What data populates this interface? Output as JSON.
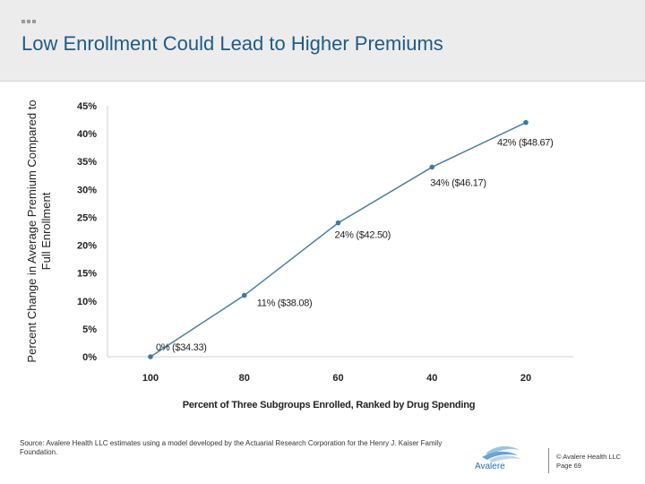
{
  "slide": {
    "title": "Low Enrollment Could Lead to Higher Premiums",
    "source": "Source:  Avalere Health LLC estimates using a model developed by the Actuarial Research Corporation for the Henry J. Kaiser Family Foundation.",
    "logo_text": "Avalere",
    "copyright": "© Avalere Health LLC",
    "page": "Page 69"
  },
  "chart_data": {
    "type": "line",
    "title": "",
    "xlabel": "Percent of Three Subgroups Enrolled, Ranked by Drug Spending",
    "ylabel": "Percent Change in Average Premium Compared to Full Enrollment",
    "x": [
      100,
      80,
      60,
      40,
      20
    ],
    "categories": [
      "100",
      "80",
      "60",
      "40",
      "20"
    ],
    "values": [
      0,
      11,
      24,
      34,
      42
    ],
    "data_labels": [
      "0% ($34.33)",
      "11% ($38.08)",
      "24% ($42.50)",
      "34% ($46.17)",
      "42% ($48.67)"
    ],
    "yticks": [
      "0%",
      "5%",
      "10%",
      "15%",
      "20%",
      "25%",
      "30%",
      "35%",
      "40%",
      "45%"
    ],
    "ylim": [
      0,
      45
    ],
    "xlim": [
      100,
      20
    ],
    "grid": false,
    "legend": "none",
    "line_color": "#4a7fa5",
    "marker_color": "#3e78a3"
  }
}
